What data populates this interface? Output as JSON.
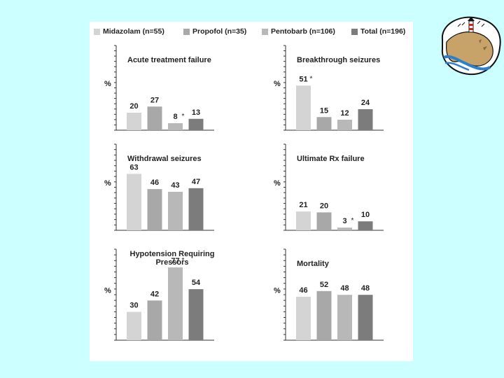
{
  "legend": [
    {
      "label": "Midazolam (n=55)",
      "color": "#d4d4d4"
    },
    {
      "label": "Propofol (n=35)",
      "color": "#a8a8a8"
    },
    {
      "label": "Pentobarb (n=106)",
      "color": "#b8b8b8"
    },
    {
      "label": "Total (n=196)",
      "color": "#7c7c7c"
    }
  ],
  "colors": {
    "background": "#ccffff",
    "panel": "#ffffff",
    "axis": "#333333",
    "text": "#222222"
  },
  "chart_data": [
    {
      "type": "bar",
      "title": "Acute treatment failure",
      "ylabel": "%",
      "categories": [
        "Midazolam (n=55)",
        "Propofol (n=35)",
        "Pentobarb (n=106)",
        "Total (n=196)"
      ],
      "values": [
        20,
        27,
        8,
        13
      ],
      "value_labels": [
        "20",
        "27",
        "8",
        "13"
      ],
      "significant": [
        false,
        false,
        true,
        false
      ],
      "ylim": [
        0,
        100
      ]
    },
    {
      "type": "bar",
      "title": "Breakthrough seizures",
      "ylabel": "%",
      "categories": [
        "Midazolam (n=55)",
        "Propofol (n=35)",
        "Pentobarb (n=106)",
        "Total (n=196)"
      ],
      "values": [
        51,
        15,
        12,
        24
      ],
      "value_labels": [
        "51",
        "15",
        "12",
        "24"
      ],
      "significant": [
        true,
        false,
        false,
        false
      ],
      "ylim": [
        0,
        100
      ]
    },
    {
      "type": "bar",
      "title": "Withdrawal seizures",
      "ylabel": "%",
      "categories": [
        "Midazolam (n=55)",
        "Propofol (n=35)",
        "Pentobarb (n=106)",
        "Total (n=196)"
      ],
      "values": [
        63,
        46,
        43,
        47
      ],
      "value_labels": [
        "63",
        "46",
        "43",
        "47"
      ],
      "significant": [
        false,
        false,
        false,
        false
      ],
      "ylim": [
        0,
        100
      ]
    },
    {
      "type": "bar",
      "title": "Ultimate Rx failure",
      "ylabel": "%",
      "categories": [
        "Midazolam (n=55)",
        "Propofol (n=35)",
        "Pentobarb (n=106)",
        "Total (n=196)"
      ],
      "values": [
        21,
        20,
        3,
        10
      ],
      "value_labels": [
        "21",
        "20",
        "3",
        "10"
      ],
      "significant": [
        false,
        false,
        true,
        false
      ],
      "ylim": [
        0,
        100
      ]
    },
    {
      "type": "bar",
      "title": "Hypotension Requiring Pressors",
      "title_lines": [
        "Hypotension Requiring",
        "Pressors"
      ],
      "ylabel": "%",
      "categories": [
        "Midazolam (n=55)",
        "Propofol (n=35)",
        "Pentobarb (n=106)",
        "Total (n=196)"
      ],
      "values": [
        30,
        42,
        77,
        54
      ],
      "value_labels": [
        "30",
        "42",
        "77",
        "54"
      ],
      "significant": [
        false,
        false,
        true,
        false
      ],
      "ylim": [
        0,
        100
      ]
    },
    {
      "type": "bar",
      "title": "Mortality",
      "ylabel": "%",
      "categories": [
        "Midazolam (n=55)",
        "Propofol (n=35)",
        "Pentobarb (n=106)",
        "Total (n=196)"
      ],
      "values": [
        46,
        52,
        48,
        48
      ],
      "value_labels": [
        "46",
        "52",
        "48",
        "48"
      ],
      "significant": [
        false,
        false,
        false,
        false
      ],
      "ylim": [
        0,
        100
      ]
    }
  ]
}
